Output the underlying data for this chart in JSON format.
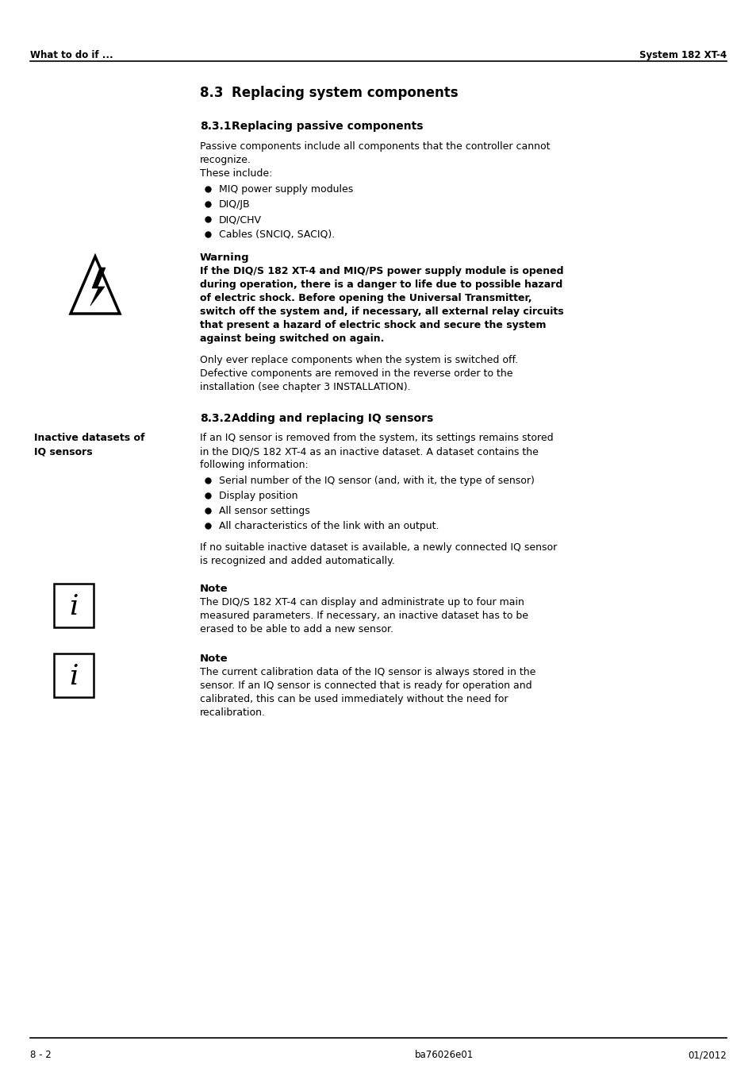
{
  "page_background": "#ffffff",
  "header_left": "What to do if ...",
  "header_right": "System 182 XT-4",
  "footer_left": "8 - 2",
  "footer_center": "ba76026e01",
  "footer_right": "01/2012",
  "section_title_num": "8.3",
  "section_title_text": "Replacing system components",
  "subsection1_num": "8.3.1",
  "subsection1_text": "Replacing passive components",
  "body1_lines": [
    "Passive components include all components that the controller cannot",
    "recognize.",
    "These include:"
  ],
  "bullet_items1": [
    "MIQ power supply modules",
    "DIQ/JB",
    "DIQ/CHV",
    "Cables (SNCIQ, SACIQ)."
  ],
  "warning_title": "Warning",
  "warning_body_lines": [
    "If the DIQ/S 182 XT-4 and MIQ/PS power supply module is opened",
    "during operation, there is a danger to life due to possible hazard",
    "of electric shock. Before opening the Universal Transmitter,",
    "switch off the system and, if necessary, all external relay circuits",
    "that present a hazard of electric shock and secure the system",
    "against being switched on again."
  ],
  "only_replace_lines": [
    "Only ever replace components when the system is switched off.",
    "Defective components are removed in the reverse order to the",
    "installation (see chapter 3 INSTALLATION)."
  ],
  "subsection2_num": "8.3.2",
  "subsection2_text": "Adding and replacing IQ sensors",
  "sidebar_line1": "Inactive datasets of",
  "sidebar_line2": "IQ sensors",
  "iq_intro_lines": [
    "If an IQ sensor is removed from the system, its settings remains stored",
    "in the DIQ/S 182 XT-4 as an inactive dataset. A dataset contains the",
    "following information:"
  ],
  "bullet_items2": [
    "Serial number of the IQ sensor (and, with it, the type of sensor)",
    "Display position",
    "All sensor settings",
    "All characteristics of the link with an output."
  ],
  "no_suitable_lines": [
    "If no suitable inactive dataset is available, a newly connected IQ sensor",
    "is recognized and added automatically."
  ],
  "note1_title": "Note",
  "note1_body_lines": [
    "The DIQ/S 182 XT-4 can display and administrate up to four main",
    "measured parameters. If necessary, an inactive dataset has to be",
    "erased to be able to add a new sensor."
  ],
  "note2_title": "Note",
  "note2_body_lines": [
    "The current calibration data of the IQ sensor is always stored in the",
    "sensor. If an IQ sensor is connected that is ready for operation and",
    "calibrated, this can be used immediately without the need for",
    "recalibration."
  ]
}
